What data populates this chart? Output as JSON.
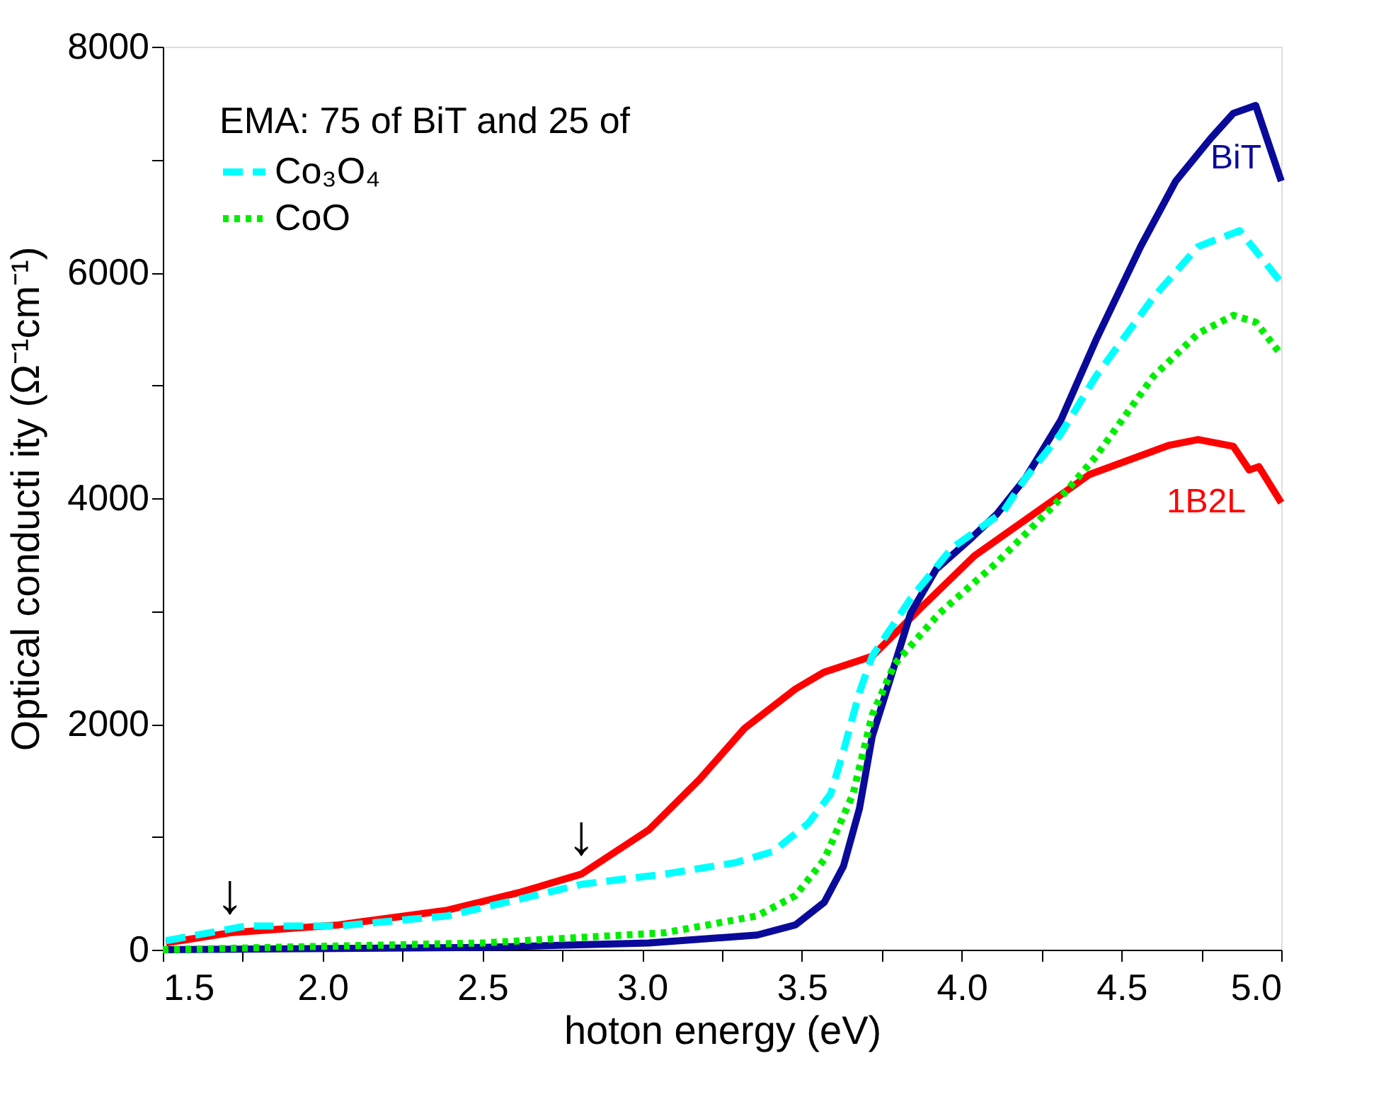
{
  "chart_data": {
    "type": "line",
    "xlabel": "hoton energy (eV)",
    "ylabel": "Optical conducti ity (Ω⁻¹cm⁻¹)",
    "legend_title": "EMA: 75    of BiT and 25    of",
    "xlim": [
      1.5,
      5.0
    ],
    "ylim": [
      0,
      8000
    ],
    "xticks": [
      {
        "value": 1.5,
        "label": "1.5"
      },
      {
        "value": 1.75,
        "label": null
      },
      {
        "value": 2.0,
        "label": "2.0"
      },
      {
        "value": 2.25,
        "label": null
      },
      {
        "value": 2.5,
        "label": "2.5"
      },
      {
        "value": 2.75,
        "label": null
      },
      {
        "value": 3.0,
        "label": "3.0"
      },
      {
        "value": 3.25,
        "label": null
      },
      {
        "value": 3.5,
        "label": "3.5"
      },
      {
        "value": 3.75,
        "label": null
      },
      {
        "value": 4.0,
        "label": "4.0"
      },
      {
        "value": 4.25,
        "label": null
      },
      {
        "value": 4.5,
        "label": "4.5"
      },
      {
        "value": 4.75,
        "label": null
      },
      {
        "value": 5.0,
        "label": "5.0"
      }
    ],
    "yticks": [
      0,
      {
        "value": 1000,
        "label": null
      },
      2000,
      {
        "value": 3000,
        "label": null
      },
      4000,
      {
        "value": 5000,
        "label": null
      },
      6000,
      {
        "value": 7000,
        "label": null
      },
      8000
    ],
    "grid": false,
    "legend": "top left",
    "annotations": [
      {
        "text": "↓",
        "x": 1.71,
        "y": 150
      },
      {
        "text": "↓",
        "x": 2.81,
        "y": 670
      }
    ],
    "series": [
      {
        "name": "1B2L",
        "color": "#ff0000",
        "line_style": "solid",
        "x": [
          1.51,
          1.71,
          2.05,
          2.39,
          2.62,
          2.81,
          3.02,
          3.18,
          3.32,
          3.48,
          3.57,
          3.72,
          3.88,
          4.04,
          4.2,
          4.4,
          4.65,
          4.74,
          4.85,
          4.9,
          4.93,
          5.0
        ],
        "values": [
          60,
          150,
          220,
          350,
          510,
          670,
          1060,
          1510,
          1960,
          2310,
          2460,
          2600,
          3050,
          3490,
          3810,
          4210,
          4470,
          4520,
          4460,
          4250,
          4280,
          3960
        ]
      },
      {
        "name": "BiT",
        "color": "#0a0a9a",
        "line_style": "solid",
        "x": [
          1.5,
          2.5,
          3.02,
          3.36,
          3.48,
          3.57,
          3.63,
          3.68,
          3.72,
          3.77,
          3.84,
          3.92,
          4.02,
          4.11,
          4.2,
          4.31,
          4.42,
          4.56,
          4.67,
          4.78,
          4.85,
          4.92,
          5.0
        ],
        "values": [
          0,
          20,
          60,
          130,
          220,
          420,
          740,
          1250,
          1890,
          2340,
          2980,
          3370,
          3620,
          3860,
          4180,
          4690,
          5400,
          6230,
          6810,
          7190,
          7410,
          7480,
          6810
        ]
      },
      {
        "name": "Co₃O₄",
        "color": "#00ffff",
        "line_style": "dashed",
        "x": [
          1.51,
          1.76,
          2.05,
          2.39,
          2.62,
          2.81,
          3.07,
          3.29,
          3.41,
          3.52,
          3.59,
          3.63,
          3.68,
          3.72,
          3.84,
          3.97,
          4.13,
          4.2,
          4.31,
          4.42,
          4.6,
          4.74,
          4.87,
          5.0
        ],
        "values": [
          80,
          210,
          210,
          300,
          450,
          580,
          670,
          770,
          870,
          1120,
          1380,
          1760,
          2280,
          2600,
          3110,
          3560,
          3880,
          4180,
          4570,
          5080,
          5780,
          6230,
          6370,
          5910
        ]
      },
      {
        "name": "CoO",
        "color": "#00ee00",
        "line_style": "dotted",
        "x": [
          1.5,
          2.5,
          3.07,
          3.36,
          3.48,
          3.57,
          3.66,
          3.72,
          3.79,
          3.93,
          4.11,
          4.29,
          4.42,
          4.6,
          4.74,
          4.85,
          4.92,
          5.0
        ],
        "values": [
          0,
          60,
          150,
          300,
          480,
          800,
          1380,
          2080,
          2530,
          2980,
          3430,
          3940,
          4370,
          5080,
          5460,
          5620,
          5560,
          5270
        ]
      }
    ]
  }
}
